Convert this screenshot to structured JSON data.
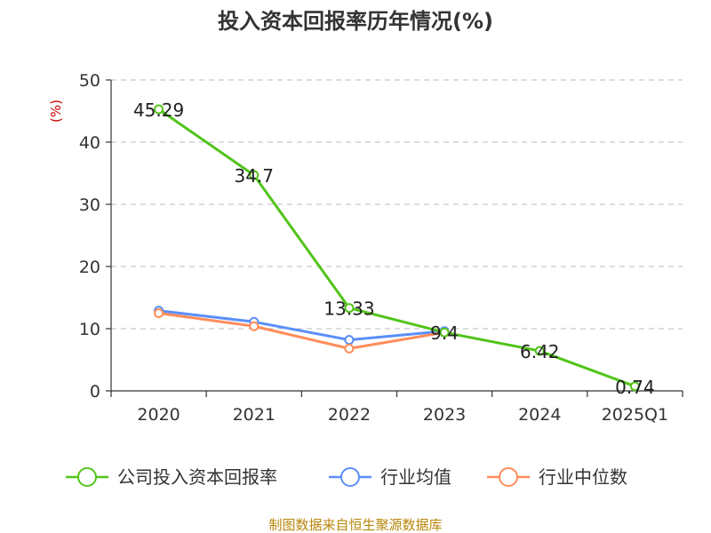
{
  "chart_data": {
    "type": "line",
    "title": "投入资本回报率历年情况(%)",
    "ylabel": "(%)",
    "xlabel": "",
    "categories": [
      "2020",
      "2021",
      "2022",
      "2023",
      "2024",
      "2025Q1"
    ],
    "ylim": [
      0,
      50
    ],
    "yticks": [
      0,
      10,
      20,
      30,
      40,
      50
    ],
    "grid": true,
    "legend_position": "bottom",
    "series": [
      {
        "name": "公司投入资本回报率",
        "color": "#52c41a",
        "values": [
          45.29,
          34.7,
          13.33,
          9.4,
          6.42,
          0.74
        ],
        "labels": [
          "45.29",
          "34.7",
          "13.33",
          "9.4",
          "6.42",
          "0.74"
        ]
      },
      {
        "name": "行业均值",
        "color": "#5b8ff9",
        "values": [
          12.9,
          11.1,
          8.2,
          9.6,
          null,
          null
        ]
      },
      {
        "name": "行业中位数",
        "color": "#ff8c5a",
        "values": [
          12.5,
          10.4,
          6.8,
          9.4,
          null,
          null
        ]
      }
    ]
  },
  "source": "制图数据来自恒生聚源数据库"
}
